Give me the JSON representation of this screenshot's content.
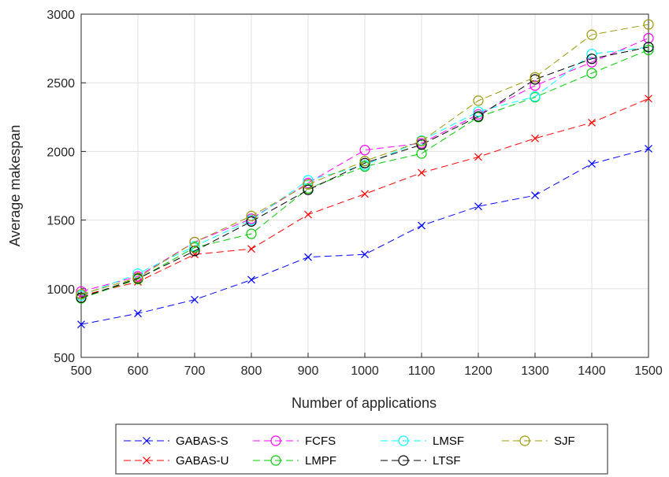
{
  "chart_data": {
    "type": "line",
    "title": "",
    "xlabel": "Number of applications",
    "ylabel": "Average makespan",
    "xlim": [
      500,
      1500
    ],
    "ylim": [
      500,
      3000
    ],
    "x_ticks": [
      500,
      600,
      700,
      800,
      900,
      1000,
      1100,
      1200,
      1300,
      1400,
      1500
    ],
    "y_ticks": [
      500,
      1000,
      1500,
      2000,
      2500,
      3000
    ],
    "grid": true,
    "legend_position": "bottom-outside",
    "x": [
      500,
      600,
      700,
      800,
      900,
      1000,
      1100,
      1200,
      1300,
      1400,
      1500
    ],
    "series": [
      {
        "name": "GABAS-S",
        "color": "#0000ff",
        "marker": "x",
        "values": [
          740,
          820,
          920,
          1065,
          1230,
          1250,
          1460,
          1600,
          1680,
          1910,
          2020
        ]
      },
      {
        "name": "GABAS-U",
        "color": "#ff0000",
        "marker": "x",
        "values": [
          950,
          1050,
          1250,
          1290,
          1540,
          1690,
          1845,
          1960,
          2095,
          2210,
          2385
        ]
      },
      {
        "name": "FCFS",
        "color": "#ff00ff",
        "marker": "circle",
        "values": [
          980,
          1090,
          1340,
          1510,
          1770,
          2010,
          2060,
          2270,
          2480,
          2650,
          2825
        ]
      },
      {
        "name": "LMPF",
        "color": "#00cc00",
        "marker": "circle",
        "values": [
          930,
          1070,
          1300,
          1400,
          1730,
          1890,
          1985,
          2250,
          2395,
          2570,
          2740
        ]
      },
      {
        "name": "LMSF",
        "color": "#00ffff",
        "marker": "circle",
        "values": [
          950,
          1110,
          1310,
          1500,
          1790,
          1900,
          2080,
          2290,
          2400,
          2710,
          2760
        ]
      },
      {
        "name": "LTSF",
        "color": "#000000",
        "marker": "circle",
        "values": [
          935,
          1075,
          1275,
          1490,
          1720,
          1915,
          2050,
          2255,
          2525,
          2675,
          2760
        ]
      },
      {
        "name": "SJF",
        "color": "#999900",
        "marker": "circle",
        "values": [
          960,
          1080,
          1340,
          1530,
          1760,
          1930,
          2075,
          2370,
          2540,
          2850,
          2925
        ]
      }
    ]
  }
}
